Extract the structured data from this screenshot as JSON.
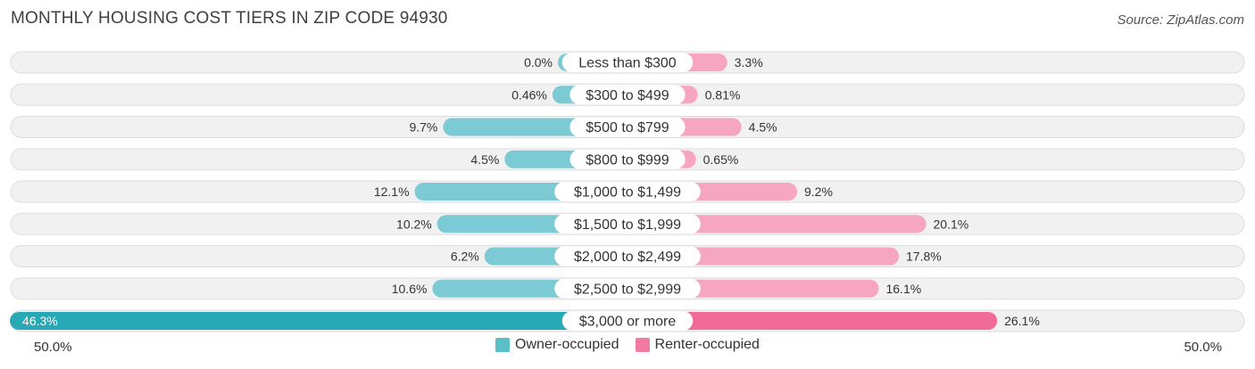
{
  "title": "MONTHLY HOUSING COST TIERS IN ZIP CODE 94930",
  "source": "Source: ZipAtlas.com",
  "axis": {
    "left_label": "50.0%",
    "right_label": "50.0%"
  },
  "legend": {
    "owner": {
      "label": "Owner-occupied",
      "color": "#5bbfc9"
    },
    "renter": {
      "label": "Renter-occupied",
      "color": "#f07aa1"
    }
  },
  "chart_data": {
    "type": "bar",
    "orientation": "horizontal-diverging",
    "title": "MONTHLY HOUSING COST TIERS IN ZIP CODE 94930",
    "axis_range": [
      -50,
      50
    ],
    "categories": [
      "Less than $300",
      "$300 to $499",
      "$500 to $799",
      "$800 to $999",
      "$1,000 to $1,499",
      "$1,500 to $1,999",
      "$2,000 to $2,499",
      "$2,500 to $2,999",
      "$3,000 or more"
    ],
    "series": [
      {
        "name": "Owner-occupied",
        "color": "#7ccad3",
        "highlight_color": "#27a9b6",
        "values": [
          0.0,
          0.46,
          9.7,
          4.5,
          12.1,
          10.2,
          6.2,
          10.6,
          46.3
        ],
        "labels": [
          "0.0%",
          "0.46%",
          "9.7%",
          "4.5%",
          "12.1%",
          "10.2%",
          "6.2%",
          "10.6%",
          "46.3%"
        ]
      },
      {
        "name": "Renter-occupied",
        "color": "#f7a6c2",
        "highlight_color": "#f06b98",
        "values": [
          3.3,
          0.81,
          4.5,
          0.65,
          9.2,
          20.1,
          17.8,
          16.1,
          26.1
        ],
        "labels": [
          "3.3%",
          "0.81%",
          "4.5%",
          "0.65%",
          "9.2%",
          "20.1%",
          "17.8%",
          "16.1%",
          "26.1%"
        ]
      }
    ]
  }
}
